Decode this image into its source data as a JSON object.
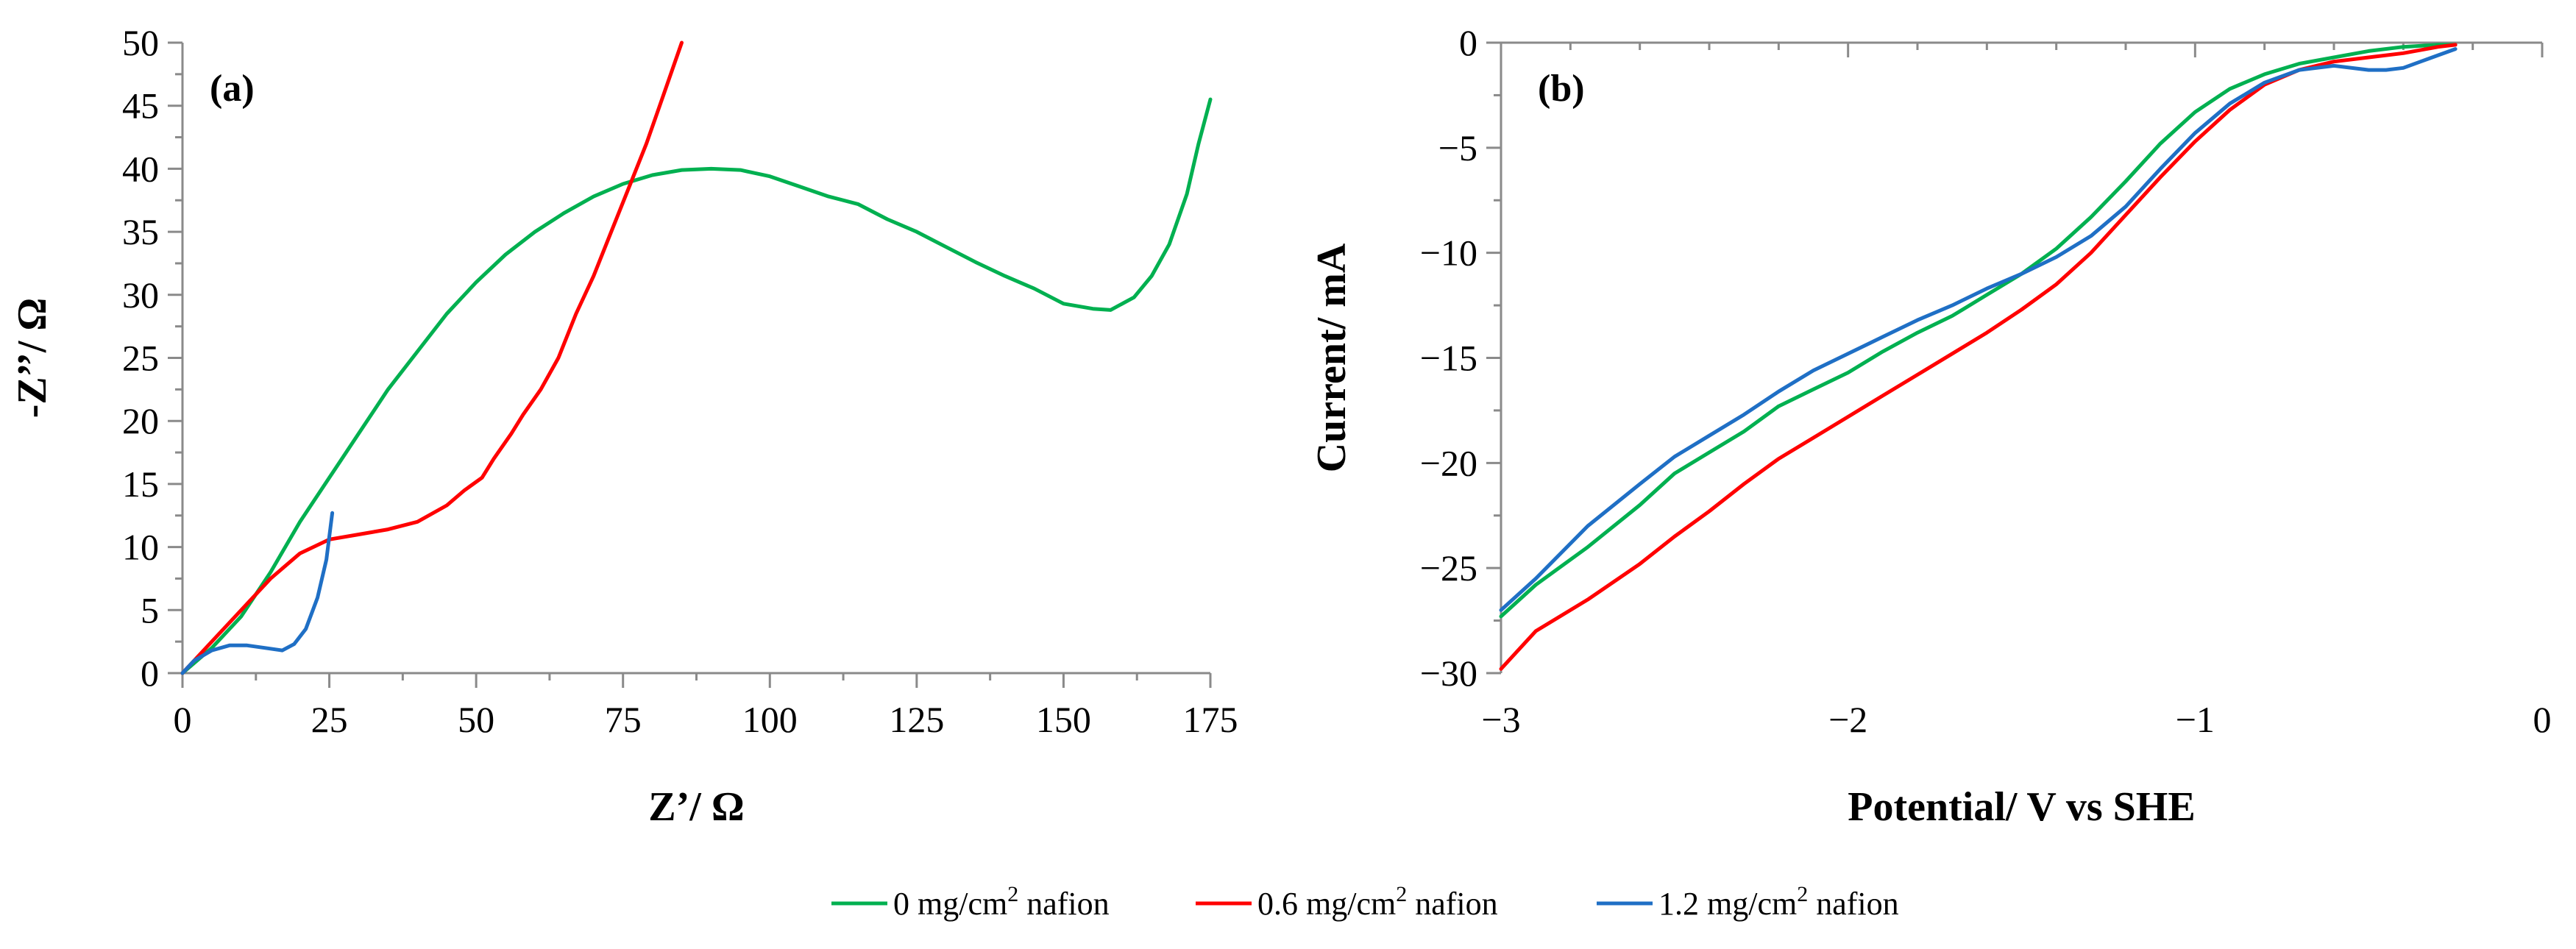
{
  "colors": {
    "green": "#00b050",
    "red": "#ff0000",
    "blue": "#1f6fc5",
    "axis": "#8a8a8a"
  },
  "legend": {
    "items": [
      {
        "label": "0 mg/cm",
        "sup": "2",
        "suffix": " nafion",
        "color": "#00b050"
      },
      {
        "label": "0.6 mg/cm",
        "sup": "2",
        "suffix": " nafion",
        "color": "#ff0000"
      },
      {
        "label": "1.2 mg/cm",
        "sup": "2",
        "suffix": " nafion",
        "color": "#1f6fc5"
      }
    ]
  },
  "chart_data": [
    {
      "type": "line",
      "panel_label": "(a)",
      "xlabel": "Z’/ Ω",
      "ylabel": "-Z’’/ Ω",
      "xlim": [
        0,
        175
      ],
      "ylim": [
        0,
        50
      ],
      "x_ticks": [
        0,
        25,
        50,
        75,
        100,
        125,
        150,
        175
      ],
      "y_ticks": [
        0,
        5,
        10,
        15,
        20,
        25,
        30,
        35,
        40,
        45,
        50
      ],
      "grid": false,
      "series": [
        {
          "name": "0 mg/cm2 nafion",
          "color": "#00b050",
          "points": [
            [
              0,
              0
            ],
            [
              5,
              2
            ],
            [
              10,
              4.5
            ],
            [
              15,
              8
            ],
            [
              20,
              12
            ],
            [
              25,
              15.5
            ],
            [
              30,
              19
            ],
            [
              35,
              22.5
            ],
            [
              40,
              25.5
            ],
            [
              45,
              28.5
            ],
            [
              50,
              31
            ],
            [
              55,
              33.2
            ],
            [
              60,
              35
            ],
            [
              65,
              36.5
            ],
            [
              70,
              37.8
            ],
            [
              75,
              38.8
            ],
            [
              80,
              39.5
            ],
            [
              85,
              39.9
            ],
            [
              90,
              40
            ],
            [
              95,
              39.9
            ],
            [
              100,
              39.4
            ],
            [
              105,
              38.6
            ],
            [
              110,
              37.8
            ],
            [
              115,
              37.2
            ],
            [
              120,
              36
            ],
            [
              125,
              35
            ],
            [
              130,
              33.8
            ],
            [
              135,
              32.6
            ],
            [
              140,
              31.5
            ],
            [
              145,
              30.5
            ],
            [
              150,
              29.3
            ],
            [
              155,
              28.9
            ],
            [
              158,
              28.8
            ],
            [
              162,
              29.8
            ],
            [
              165,
              31.5
            ],
            [
              168,
              34
            ],
            [
              171,
              38
            ],
            [
              173,
              42
            ],
            [
              175,
              45.5
            ]
          ]
        },
        {
          "name": "0.6 mg/cm2 nafion",
          "color": "#ff0000",
          "points": [
            [
              0,
              0
            ],
            [
              5,
              2.5
            ],
            [
              10,
              5
            ],
            [
              15,
              7.5
            ],
            [
              20,
              9.5
            ],
            [
              25,
              10.6
            ],
            [
              30,
              11
            ],
            [
              35,
              11.4
            ],
            [
              40,
              12
            ],
            [
              45,
              13.3
            ],
            [
              48,
              14.5
            ],
            [
              51,
              15.5
            ],
            [
              53,
              17
            ],
            [
              56,
              19
            ],
            [
              58,
              20.5
            ],
            [
              61,
              22.5
            ],
            [
              64,
              25
            ],
            [
              67,
              28.5
            ],
            [
              70,
              31.5
            ],
            [
              73,
              35
            ],
            [
              76,
              38.5
            ],
            [
              79,
              42
            ],
            [
              82,
              46
            ],
            [
              85,
              50
            ]
          ]
        },
        {
          "name": "1.2 mg/cm2 nafion",
          "color": "#1f6fc5",
          "points": [
            [
              0,
              0
            ],
            [
              2,
              1
            ],
            [
              5,
              1.8
            ],
            [
              8,
              2.2
            ],
            [
              11,
              2.2
            ],
            [
              14,
              2
            ],
            [
              17,
              1.8
            ],
            [
              19,
              2.3
            ],
            [
              21,
              3.5
            ],
            [
              23,
              6
            ],
            [
              24.5,
              9
            ],
            [
              25.5,
              12.7
            ]
          ]
        }
      ]
    },
    {
      "type": "line",
      "panel_label": "(b)",
      "xlabel": "Potential/ V vs SHE",
      "ylabel": "Current/ mA",
      "xlim": [
        -3,
        0
      ],
      "ylim": [
        -30,
        0
      ],
      "x_ticks": [
        -3,
        -2,
        -1,
        0
      ],
      "y_ticks": [
        0,
        -5,
        -10,
        -15,
        -20,
        -25,
        -30
      ],
      "grid": false,
      "series": [
        {
          "name": "0 mg/cm2 nafion",
          "color": "#00b050",
          "points": [
            [
              -3,
              -27.3
            ],
            [
              -2.9,
              -25.8
            ],
            [
              -2.75,
              -24
            ],
            [
              -2.6,
              -22
            ],
            [
              -2.5,
              -20.5
            ],
            [
              -2.4,
              -19.5
            ],
            [
              -2.3,
              -18.5
            ],
            [
              -2.2,
              -17.3
            ],
            [
              -2.1,
              -16.5
            ],
            [
              -2,
              -15.7
            ],
            [
              -1.9,
              -14.7
            ],
            [
              -1.8,
              -13.8
            ],
            [
              -1.7,
              -13
            ],
            [
              -1.6,
              -12
            ],
            [
              -1.5,
              -11
            ],
            [
              -1.4,
              -9.8
            ],
            [
              -1.3,
              -8.3
            ],
            [
              -1.2,
              -6.6
            ],
            [
              -1.1,
              -4.8
            ],
            [
              -1,
              -3.3
            ],
            [
              -0.9,
              -2.2
            ],
            [
              -0.8,
              -1.5
            ],
            [
              -0.7,
              -1
            ],
            [
              -0.6,
              -0.7
            ],
            [
              -0.5,
              -0.4
            ],
            [
              -0.4,
              -0.2
            ],
            [
              -0.3,
              -0.1
            ],
            [
              -0.25,
              -0.1
            ]
          ]
        },
        {
          "name": "0.6 mg/cm2 nafion",
          "color": "#ff0000",
          "points": [
            [
              -3,
              -29.8
            ],
            [
              -2.9,
              -28
            ],
            [
              -2.75,
              -26.5
            ],
            [
              -2.6,
              -24.8
            ],
            [
              -2.5,
              -23.5
            ],
            [
              -2.4,
              -22.3
            ],
            [
              -2.3,
              -21
            ],
            [
              -2.2,
              -19.8
            ],
            [
              -2.1,
              -18.8
            ],
            [
              -2,
              -17.8
            ],
            [
              -1.9,
              -16.8
            ],
            [
              -1.8,
              -15.8
            ],
            [
              -1.7,
              -14.8
            ],
            [
              -1.6,
              -13.8
            ],
            [
              -1.5,
              -12.7
            ],
            [
              -1.4,
              -11.5
            ],
            [
              -1.3,
              -10
            ],
            [
              -1.2,
              -8.2
            ],
            [
              -1.1,
              -6.4
            ],
            [
              -1,
              -4.7
            ],
            [
              -0.9,
              -3.2
            ],
            [
              -0.8,
              -2
            ],
            [
              -0.7,
              -1.3
            ],
            [
              -0.6,
              -0.9
            ],
            [
              -0.5,
              -0.7
            ],
            [
              -0.4,
              -0.5
            ],
            [
              -0.3,
              -0.2
            ],
            [
              -0.25,
              -0.1
            ]
          ]
        },
        {
          "name": "1.2 mg/cm2 nafion",
          "color": "#1f6fc5",
          "points": [
            [
              -3,
              -27
            ],
            [
              -2.9,
              -25.5
            ],
            [
              -2.75,
              -23
            ],
            [
              -2.6,
              -21
            ],
            [
              -2.5,
              -19.7
            ],
            [
              -2.4,
              -18.7
            ],
            [
              -2.3,
              -17.7
            ],
            [
              -2.2,
              -16.6
            ],
            [
              -2.1,
              -15.6
            ],
            [
              -2,
              -14.8
            ],
            [
              -1.9,
              -14
            ],
            [
              -1.8,
              -13.2
            ],
            [
              -1.7,
              -12.5
            ],
            [
              -1.6,
              -11.7
            ],
            [
              -1.5,
              -11
            ],
            [
              -1.4,
              -10.2
            ],
            [
              -1.3,
              -9.2
            ],
            [
              -1.2,
              -7.8
            ],
            [
              -1.1,
              -6
            ],
            [
              -1,
              -4.3
            ],
            [
              -0.9,
              -2.9
            ],
            [
              -0.8,
              -1.9
            ],
            [
              -0.7,
              -1.3
            ],
            [
              -0.6,
              -1.1
            ],
            [
              -0.5,
              -1.3
            ],
            [
              -0.45,
              -1.3
            ],
            [
              -0.4,
              -1.2
            ],
            [
              -0.35,
              -0.9
            ],
            [
              -0.3,
              -0.6
            ],
            [
              -0.25,
              -0.3
            ]
          ]
        }
      ]
    }
  ]
}
